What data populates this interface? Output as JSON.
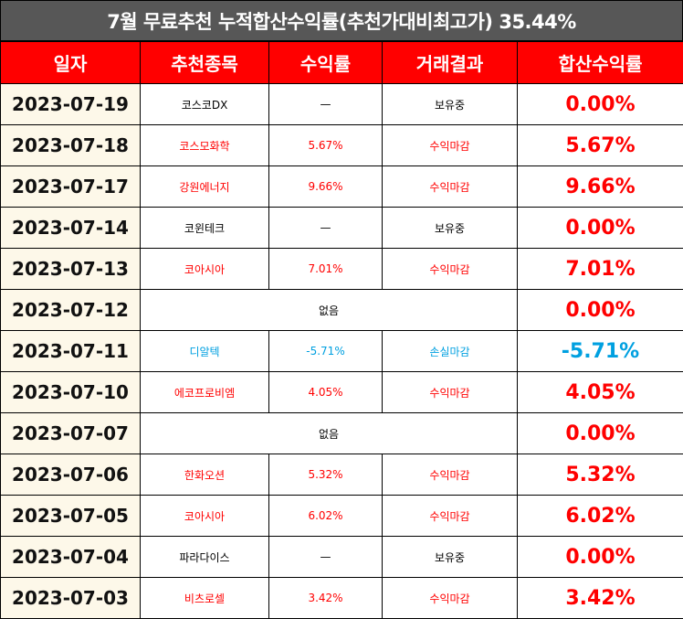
{
  "title": "7월 무료추천 누적합산수익률(추천가대비최고가) 35.44%",
  "headers": [
    "일자",
    "추천종목",
    "수익률",
    "거래결과",
    "합산수익률"
  ],
  "colors": {
    "header_bg": "#ff0000",
    "title_bg": "#575757",
    "date_bg": "#fdf8e9",
    "gain": "#ff0000",
    "loss": "#00a0e0"
  },
  "rows": [
    {
      "date": "2023-07-19",
      "stock": "코스코DX",
      "rate": "—",
      "result": "보유중",
      "total": "0.00%",
      "tone": "black",
      "total_tone": "red",
      "merged": false
    },
    {
      "date": "2023-07-18",
      "stock": "코스모화학",
      "rate": "5.67%",
      "result": "수익마감",
      "total": "5.67%",
      "tone": "red",
      "total_tone": "red",
      "merged": false
    },
    {
      "date": "2023-07-17",
      "stock": "강원에너지",
      "rate": "9.66%",
      "result": "수익마감",
      "total": "9.66%",
      "tone": "red",
      "total_tone": "red",
      "merged": false
    },
    {
      "date": "2023-07-14",
      "stock": "코윈테크",
      "rate": "—",
      "result": "보유중",
      "total": "0.00%",
      "tone": "black",
      "total_tone": "red",
      "merged": false
    },
    {
      "date": "2023-07-13",
      "stock": "코아시아",
      "rate": "7.01%",
      "result": "수익마감",
      "total": "7.01%",
      "tone": "red",
      "total_tone": "red",
      "merged": false
    },
    {
      "date": "2023-07-12",
      "stock": "없음",
      "rate": "",
      "result": "",
      "total": "0.00%",
      "tone": "black",
      "total_tone": "red",
      "merged": true
    },
    {
      "date": "2023-07-11",
      "stock": "디알텍",
      "rate": "-5.71%",
      "result": "손실마감",
      "total": "-5.71%",
      "tone": "blue",
      "total_tone": "blue",
      "merged": false
    },
    {
      "date": "2023-07-10",
      "stock": "에코프로비엠",
      "rate": "4.05%",
      "result": "수익마감",
      "total": "4.05%",
      "tone": "red",
      "total_tone": "red",
      "merged": false
    },
    {
      "date": "2023-07-07",
      "stock": "없음",
      "rate": "",
      "result": "",
      "total": "0.00%",
      "tone": "black",
      "total_tone": "red",
      "merged": true
    },
    {
      "date": "2023-07-06",
      "stock": "한화오션",
      "rate": "5.32%",
      "result": "수익마감",
      "total": "5.32%",
      "tone": "red",
      "total_tone": "red",
      "merged": false
    },
    {
      "date": "2023-07-05",
      "stock": "코아시아",
      "rate": "6.02%",
      "result": "수익마감",
      "total": "6.02%",
      "tone": "red",
      "total_tone": "red",
      "merged": false
    },
    {
      "date": "2023-07-04",
      "stock": "파라다이스",
      "rate": "—",
      "result": "보유중",
      "total": "0.00%",
      "tone": "black",
      "total_tone": "red",
      "merged": false
    },
    {
      "date": "2023-07-03",
      "stock": "비츠로셀",
      "rate": "3.42%",
      "result": "수익마감",
      "total": "3.42%",
      "tone": "red",
      "total_tone": "red",
      "merged": false
    }
  ]
}
